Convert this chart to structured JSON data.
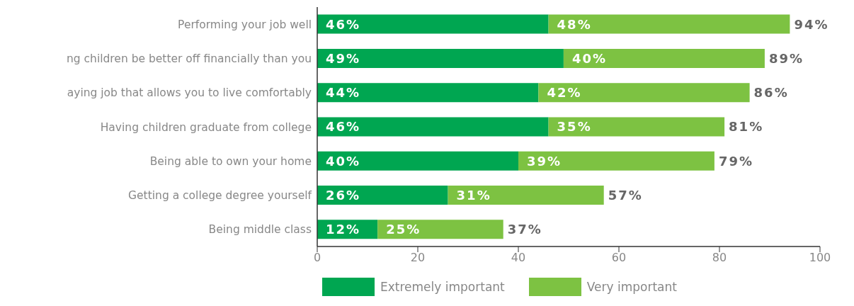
{
  "chart_data": {
    "type": "bar",
    "orientation": "horizontal",
    "stacked": true,
    "categories": [
      "Performing your job well",
      "ng children be better off financially than you",
      "aying job that allows you to live comfortably",
      "Having children graduate from college",
      "Being able to own your home",
      "Getting a college degree yourself",
      "Being middle class"
    ],
    "series": [
      {
        "name": "Extremely important",
        "color": "#00a651",
        "values": [
          46,
          49,
          44,
          46,
          40,
          26,
          12
        ],
        "value_labels": [
          "46%",
          "49%",
          "44%",
          "46%",
          "40%",
          "26%",
          "12%"
        ]
      },
      {
        "name": "Very important",
        "color": "#7dc242",
        "values": [
          48,
          40,
          42,
          35,
          39,
          31,
          25
        ],
        "value_labels": [
          "48%",
          "40%",
          "42%",
          "35%",
          "39%",
          "31%",
          "25%"
        ]
      }
    ],
    "totals": [
      "94%",
      "89%",
      "86%",
      "81%",
      "79%",
      "57%",
      "37%"
    ],
    "xlim": [
      0,
      100
    ],
    "xticks": [
      0,
      20,
      40,
      60,
      80,
      100
    ],
    "legend": "bottom"
  }
}
